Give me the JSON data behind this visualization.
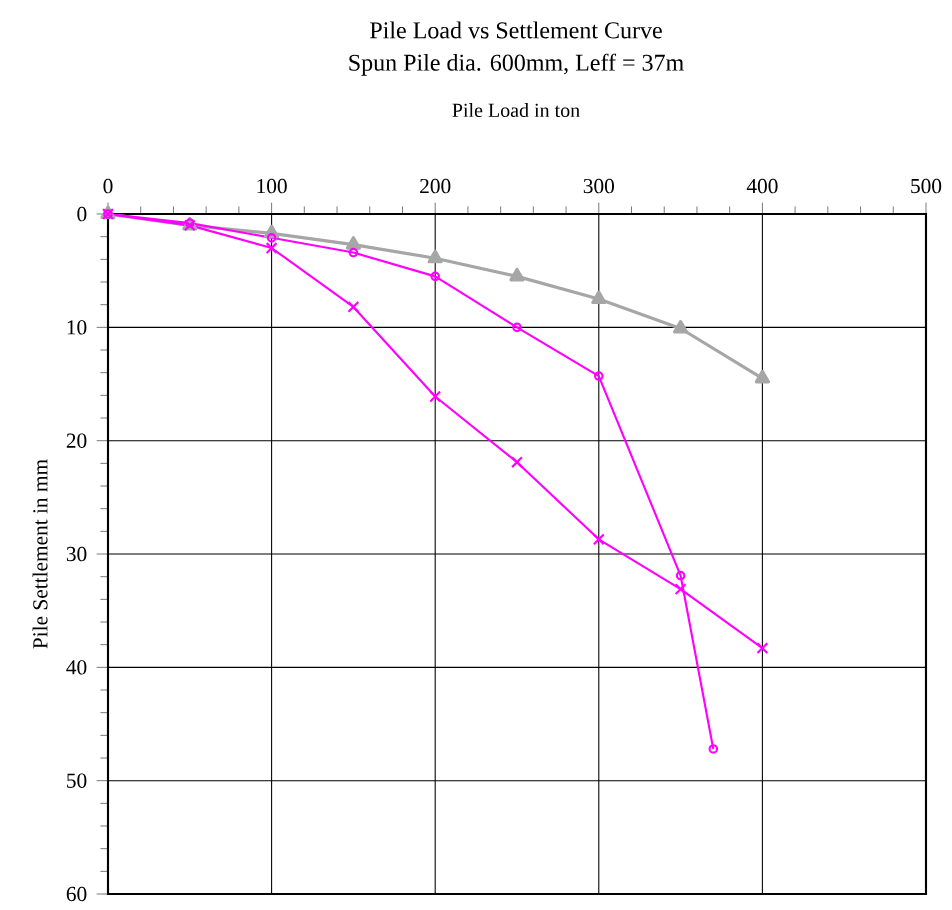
{
  "chart_data": {
    "type": "line",
    "title": "Pile Load vs Settlement Curve",
    "subtitle": "Spun Pile dia. 600mm, Leff = 37m",
    "xlabel": "Pile Load in ton",
    "ylabel": "Pile Settlement in mm",
    "x": [
      0,
      50,
      100,
      150,
      200,
      250,
      300,
      350,
      400
    ],
    "series": [
      {
        "color": "#a6a6a6",
        "marker": "triangle",
        "values": [
          0,
          1,
          1.7,
          2.7,
          3.9,
          5.5,
          7.5,
          10.1,
          14.5
        ]
      },
      {
        "color": "#ff00ff",
        "marker": "circle",
        "x": [
          0,
          50,
          100,
          150,
          200,
          250,
          300,
          350,
          370
        ],
        "values": [
          0,
          0.8,
          2.1,
          3.4,
          5.5,
          10,
          14.3,
          31.9,
          47.2
        ]
      },
      {
        "color": "#ff00ff",
        "marker": "cross",
        "values": [
          0,
          1,
          3,
          8.2,
          16.1,
          21.9,
          28.7,
          33.1,
          38.3
        ]
      }
    ],
    "xlim": [
      0,
      500
    ],
    "xticks": [
      0,
      100,
      200,
      300,
      400,
      500
    ],
    "ylim": [
      60,
      0
    ],
    "yticks": [
      0,
      10,
      20,
      30,
      40,
      50,
      60
    ],
    "grid": true
  }
}
